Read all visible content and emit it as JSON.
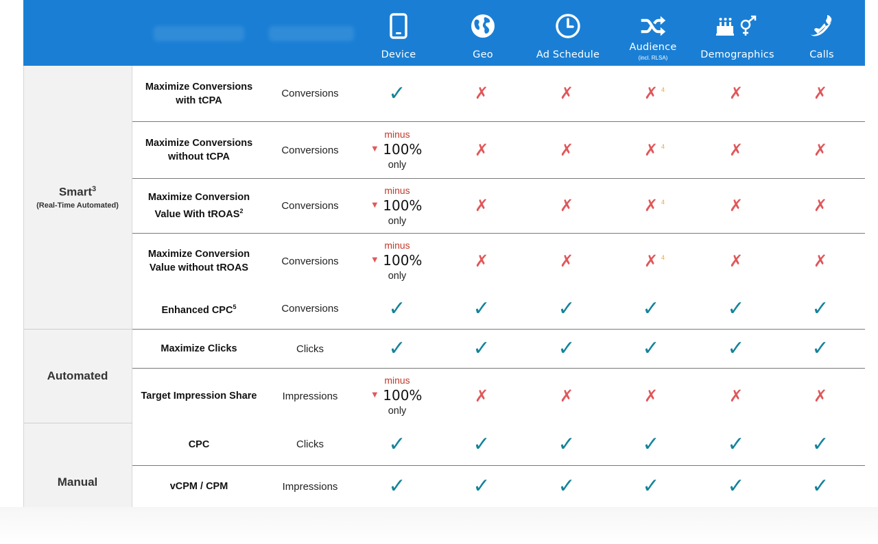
{
  "header": {
    "columns": [
      {
        "label": "Device",
        "sub": "",
        "icon": "smartphone-icon"
      },
      {
        "label": "Geo",
        "sub": "",
        "icon": "globe-icon"
      },
      {
        "label": "Ad Schedule",
        "sub": "",
        "icon": "clock-icon"
      },
      {
        "label": "Audience",
        "sub": "(incl. RLSA)",
        "icon": "shuffle-icon"
      },
      {
        "label": "Demographics",
        "sub": "",
        "icon": "cake-gender-icon"
      },
      {
        "label": "Calls",
        "sub": "",
        "icon": "phone-icon"
      }
    ]
  },
  "groups": [
    {
      "title": "Smart",
      "sup": "3",
      "sub": "(Real-Time Automated)"
    },
    {
      "title": "Automated",
      "sup": "",
      "sub": ""
    },
    {
      "title": "Manual",
      "sup": "",
      "sub": ""
    }
  ],
  "minus": {
    "word": "minus",
    "value": "100%",
    "only": "only"
  },
  "footnote_audience": "4",
  "rows": [
    {
      "strategy": "Maximize Conversions with tCPA",
      "goal": "Conversions",
      "marks": [
        "check",
        "cross",
        "cross",
        "cross4",
        "cross",
        "cross"
      ]
    },
    {
      "strategy": "Maximize Conversions without tCPA",
      "goal": "Conversions",
      "marks": [
        "minus",
        "cross",
        "cross",
        "cross4",
        "cross",
        "cross"
      ]
    },
    {
      "strategy": "Maximize Conversion Value With tROAS",
      "strategy_sup": "2",
      "goal": "Conversions",
      "marks": [
        "minus",
        "cross",
        "cross",
        "cross4",
        "cross",
        "cross"
      ]
    },
    {
      "strategy": "Maximize Conversion Value without tROAS",
      "goal": "Conversions",
      "marks": [
        "minus",
        "cross",
        "cross",
        "cross4",
        "cross",
        "cross"
      ]
    },
    {
      "strategy": "Enhanced CPC",
      "strategy_sup": "5",
      "goal": "Conversions",
      "marks": [
        "check",
        "check",
        "check",
        "check",
        "check",
        "check"
      ]
    },
    {
      "strategy": "Maximize Clicks",
      "goal": "Clicks",
      "marks": [
        "check",
        "check",
        "check",
        "check",
        "check",
        "check"
      ]
    },
    {
      "strategy": "Target Impression Share",
      "goal": "Impressions",
      "marks": [
        "minus",
        "cross",
        "cross",
        "cross",
        "cross",
        "cross"
      ]
    },
    {
      "strategy": "CPC",
      "goal": "Clicks",
      "marks": [
        "check",
        "check",
        "check",
        "check",
        "check",
        "check"
      ]
    },
    {
      "strategy": "vCPM / CPM",
      "goal": "Impressions",
      "marks": [
        "check",
        "check",
        "check",
        "check",
        "check",
        "check"
      ]
    }
  ],
  "colors": {
    "header_bg": "#1a7fd4",
    "check": "#14839a",
    "cross": "#e0575a",
    "minus_word": "#c0392b",
    "footnote": "#f2a23a"
  }
}
